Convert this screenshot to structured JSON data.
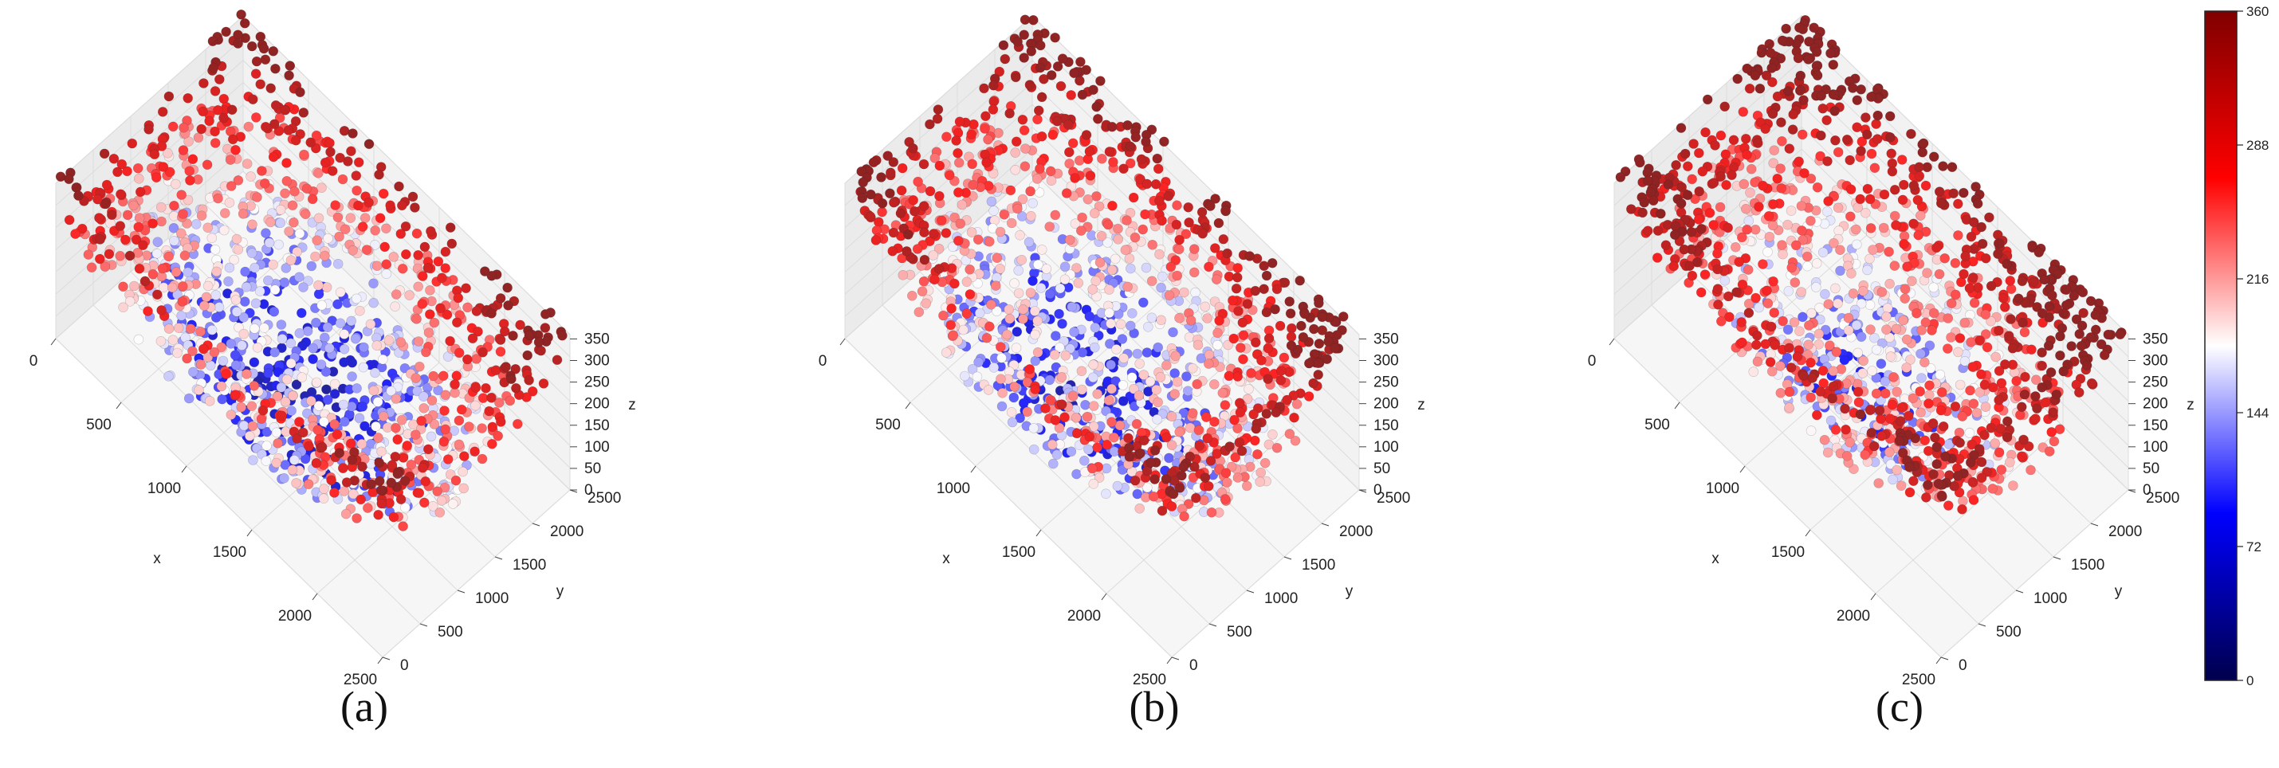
{
  "figure": {
    "panel_labels": [
      "(a)",
      "(b)",
      "(c)"
    ]
  },
  "colorbar": {
    "colormap": "seismic",
    "colors": [
      "#00004c",
      "#0000ff",
      "#ffffff",
      "#ff0000",
      "#800000"
    ],
    "range": [
      0,
      360
    ],
    "ticks": [
      "0",
      "72",
      "144",
      "216",
      "288",
      "360"
    ]
  },
  "chart_data": [
    {
      "type": "scatter",
      "subtype": "3d-scatter",
      "panel": "(a)",
      "xlabel": "x",
      "ylabel": "y",
      "zlabel": "z",
      "xlim": [
        0,
        2500
      ],
      "ylim": [
        0,
        2500
      ],
      "zlim": [
        0,
        350
      ],
      "xticks": [
        "0",
        "500",
        "1000",
        "1500",
        "2000",
        "2500"
      ],
      "yticks": [
        "0",
        "500",
        "1000",
        "1500",
        "2000",
        "2500"
      ],
      "zticks": [
        "0",
        "50",
        "100",
        "150",
        "200",
        "250",
        "300",
        "350"
      ],
      "color_by": "z",
      "approx_point_count": 2500,
      "distribution": "Points spread uniformly over x,y in [0,2500]; z ranges 0-360 forming a bowl-shaped surface (low values near the front corner, high values at the back)."
    },
    {
      "type": "scatter",
      "subtype": "3d-scatter",
      "panel": "(b)",
      "xlabel": "x",
      "ylabel": "y",
      "zlabel": "z",
      "xlim": [
        0,
        2500
      ],
      "ylim": [
        0,
        2500
      ],
      "zlim": [
        0,
        350
      ],
      "xticks": [
        "0",
        "500",
        "1000",
        "1500",
        "2000",
        "2500"
      ],
      "yticks": [
        "0",
        "500",
        "1000",
        "1500",
        "2000",
        "2500"
      ],
      "zticks": [
        "0",
        "50",
        "100",
        "150",
        "200",
        "250",
        "300",
        "350"
      ],
      "color_by": "z",
      "approx_point_count": 2500,
      "distribution": "Similar to (a); z ranges 0-360 with high values concentrated toward the back and center."
    },
    {
      "type": "scatter",
      "subtype": "3d-scatter",
      "panel": "(c)",
      "xlabel": "x",
      "ylabel": "y",
      "zlabel": "z",
      "xlim": [
        0,
        2500
      ],
      "ylim": [
        0,
        2500
      ],
      "zlim": [
        0,
        350
      ],
      "xticks": [
        "0",
        "500",
        "1000",
        "1500",
        "2000",
        "2500"
      ],
      "yticks": [
        "0",
        "500",
        "1000",
        "1500",
        "2000",
        "2500"
      ],
      "zticks": [
        "0",
        "50",
        "100",
        "150",
        "200",
        "250",
        "300",
        "350"
      ],
      "color_by": "z",
      "approx_point_count": 2500,
      "distribution": "Similar to (a) and (b); a larger share of points reach high z values (dark red) across the back half."
    }
  ]
}
